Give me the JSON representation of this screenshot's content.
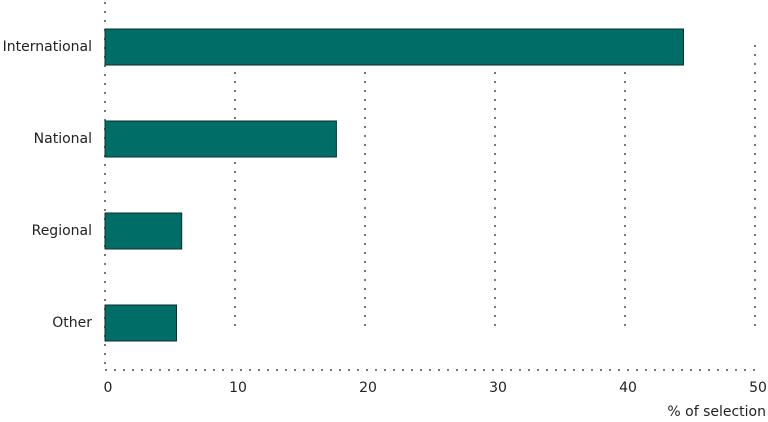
{
  "chart_data": {
    "type": "bar",
    "orientation": "horizontal",
    "categories": [
      "International",
      "National",
      "Regional",
      "Other"
    ],
    "values": [
      44.5,
      17.8,
      5.9,
      5.5
    ],
    "color": "#006d66",
    "xlim": [
      0,
      50
    ],
    "xticks": [
      0,
      10,
      20,
      30,
      40,
      50
    ],
    "xlabel": "% of selection",
    "grid": true
  }
}
